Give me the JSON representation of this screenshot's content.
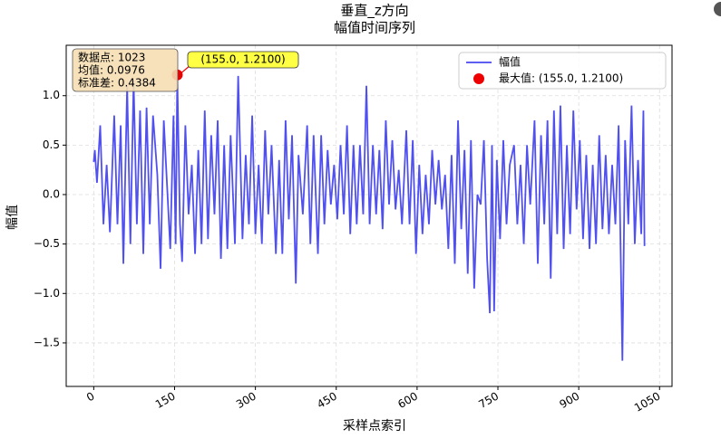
{
  "chart_data": {
    "type": "line",
    "title": "垂直_z方向",
    "subtitle": "幅值时间序列",
    "xlabel": "采样点索引",
    "ylabel": "幅值",
    "x": [
      0,
      2,
      6,
      12,
      18,
      24,
      30,
      38,
      44,
      50,
      55,
      62,
      68,
      74,
      80,
      86,
      92,
      98,
      104,
      110,
      118,
      124,
      130,
      136,
      142,
      148,
      152,
      155,
      160,
      164,
      170,
      176,
      182,
      188,
      194,
      200,
      206,
      212,
      218,
      224,
      230,
      236,
      242,
      248,
      254,
      262,
      268,
      276,
      282,
      288,
      294,
      300,
      306,
      312,
      318,
      324,
      330,
      338,
      344,
      350,
      356,
      362,
      368,
      375,
      380,
      388,
      396,
      402,
      408,
      416,
      422,
      428,
      434,
      440,
      446,
      452,
      458,
      464,
      470,
      476,
      482,
      488,
      494,
      500,
      506,
      512,
      518,
      524,
      530,
      536,
      542,
      548,
      554,
      560,
      566,
      572,
      580,
      586,
      592,
      598,
      604,
      610,
      616,
      622,
      628,
      634,
      640,
      646,
      652,
      658,
      664,
      670,
      676,
      682,
      688,
      694,
      700,
      706,
      712,
      718,
      724,
      730,
      735,
      739,
      743,
      748,
      754,
      760,
      766,
      772,
      780,
      786,
      792,
      798,
      804,
      810,
      818,
      824,
      830,
      836,
      842,
      848,
      854,
      860,
      866,
      872,
      878,
      884,
      890,
      896,
      902,
      908,
      914,
      920,
      926,
      932,
      938,
      944,
      950,
      956,
      962,
      968,
      974,
      981,
      986,
      992,
      998,
      1004,
      1010,
      1016,
      1020,
      1022
    ],
    "series": [
      {
        "name": "幅值",
        "color": "#4747f0",
        "values": [
          0.33,
          0.45,
          0.12,
          0.7,
          -0.3,
          0.3,
          -0.38,
          0.8,
          -0.3,
          0.7,
          -0.7,
          1.1,
          -0.5,
          1.15,
          -0.3,
          0.85,
          -0.6,
          0.88,
          -0.3,
          0.8,
          0.2,
          -0.75,
          0.75,
          0.1,
          -0.55,
          0.8,
          -0.5,
          1.21,
          -0.3,
          -0.68,
          0.7,
          -0.2,
          0.3,
          -0.6,
          0.45,
          -0.5,
          0.85,
          -0.45,
          0.6,
          -0.2,
          0.75,
          -0.65,
          0.5,
          -0.55,
          0.6,
          -0.5,
          1.2,
          -0.45,
          0.4,
          -0.3,
          0.8,
          -0.4,
          0.3,
          -0.5,
          0.65,
          -0.2,
          0.5,
          -0.6,
          0.35,
          -0.6,
          0.75,
          -0.25,
          0.6,
          -0.9,
          0.4,
          -0.2,
          0.7,
          -0.5,
          0.6,
          -0.6,
          0.6,
          -0.3,
          0.45,
          -0.1,
          0.3,
          -0.25,
          0.5,
          -0.2,
          0.7,
          -0.4,
          0.5,
          -0.3,
          0.5,
          -0.2,
          1.1,
          -0.3,
          0.5,
          -0.2,
          0.45,
          -0.35,
          0.75,
          -0.1,
          0.55,
          -0.15,
          0.25,
          -0.3,
          0.65,
          -0.3,
          0.55,
          -0.6,
          0.3,
          -0.4,
          0.2,
          -0.3,
          0.45,
          -0.1,
          0.35,
          -0.15,
          0.2,
          -0.55,
          0.4,
          -0.7,
          0.75,
          -0.35,
          0.45,
          -0.8,
          0.55,
          -0.95,
          0.0,
          -0.1,
          0.55,
          -0.65,
          -1.2,
          0.5,
          -1.18,
          0.35,
          -0.45,
          0.55,
          -0.3,
          0.3,
          0.5,
          -0.3,
          0.3,
          -0.5,
          0.5,
          -0.1,
          0.75,
          -0.7,
          0.6,
          -0.3,
          0.75,
          -0.85,
          0.85,
          -0.4,
          0.9,
          -0.55,
          0.5,
          -0.4,
          0.85,
          -0.15,
          0.55,
          -0.45,
          0.4,
          -0.55,
          0.3,
          -0.5,
          0.6,
          -0.35,
          0.4,
          -0.4,
          0.3,
          -0.3,
          0.7,
          -1.68,
          0.55,
          -0.3,
          0.9,
          -0.5,
          0.35,
          -0.4,
          0.85,
          -0.52
        ]
      }
    ],
    "max_point": {
      "name": "最大值: (155.0, 1.2100)",
      "label": "(155.0, 1.2100)",
      "x": 155,
      "y": 1.21,
      "color": "#ee0000"
    },
    "stats": [
      "数据点: 1023",
      "均值: 0.0976",
      "标准差: 0.4384"
    ],
    "xlim": [
      -51.1,
      1073.1
    ],
    "ylim": [
      -1.94,
      1.51
    ],
    "xticks": [
      0,
      150,
      300,
      450,
      600,
      750,
      900,
      1050
    ],
    "yticks": [
      {
        "value": -1.5,
        "label": "−1.5"
      },
      {
        "value": -1.0,
        "label": "−1.0"
      },
      {
        "value": -0.5,
        "label": "−0.5"
      },
      {
        "value": 0.0,
        "label": "0.0"
      },
      0.5,
      {
        "value": 1.0,
        "label": "1.0"
      }
    ],
    "grid": true,
    "legend": "upper right"
  }
}
